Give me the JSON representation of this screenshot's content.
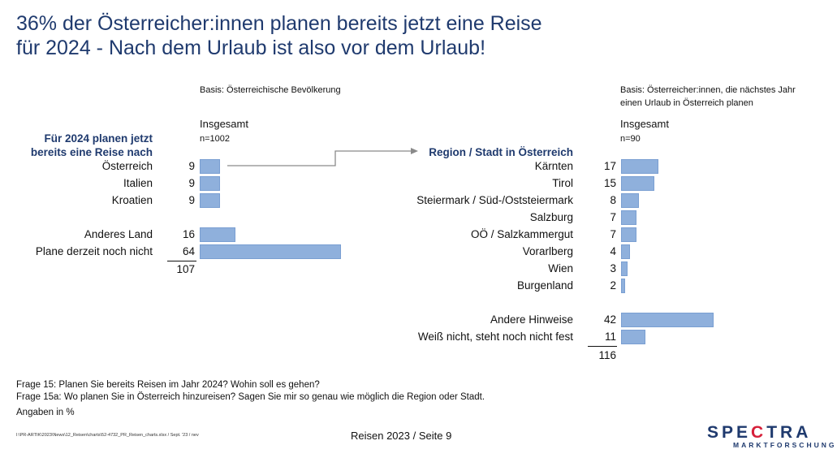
{
  "title_line1": "36% der Österreicher:innen planen bereits jetzt eine Reise",
  "title_line2": "für 2024 - Nach dem Urlaub ist also vor dem Urlaub!",
  "colors": {
    "bar": "#8fb0dc",
    "title": "#1f3a6e",
    "arrow": "#8a8a8a",
    "logo_accent": "#d6203a"
  },
  "chart_data": [
    {
      "type": "bar",
      "orientation": "horizontal",
      "basis": "Basis: Österreichische Bevölkerung",
      "group_label": "Insgesamt",
      "n": "n=1002",
      "heading": [
        "Für 2024 planen jetzt",
        "bereits eine Reise nach"
      ],
      "categories": [
        "Österreich",
        "Italien",
        "Kroatien",
        "Anderes Land",
        "Plane derzeit noch nicht"
      ],
      "values": [
        9,
        9,
        9,
        16,
        64
      ],
      "total": "107",
      "xlim": [
        0,
        64
      ]
    },
    {
      "type": "bar",
      "orientation": "horizontal",
      "basis_line1": "Basis: Österreicher:innen, die nächstes Jahr",
      "basis_line2": "einen Urlaub in Österreich planen",
      "group_label": "Insgesamt",
      "n": "n=90",
      "heading": "Region / Stadt in Österreich",
      "categories": [
        "Kärnten",
        "Tirol",
        "Steiermark / Süd-/Oststeiermark",
        "Salzburg",
        "OÖ / Salzkammergut",
        "Vorarlberg",
        "Wien",
        "Burgenland",
        "Andere Hinweise",
        "Weiß nicht, steht noch nicht fest"
      ],
      "values": [
        17,
        15,
        8,
        7,
        7,
        4,
        3,
        2,
        42,
        11
      ],
      "total": "116",
      "xlim": [
        0,
        42
      ]
    }
  ],
  "footer": {
    "q1": "Frage 15: Planen Sie bereits Reisen im Jahr 2024? Wohin soll es gehen?",
    "q2": "Frage 15a: Wo planen Sie in Österreich hinzureisen? Sagen Sie mir so genau wie möglich die Region oder Stadt.",
    "units": "Angaben in %",
    "path": "I:\\PR-ARTIK\\2023\\News\\12_Reisen\\charts\\52-4732_PR_Reisen_charts.xlsx / Sept. '23 / nev",
    "page": "Reisen 2023  /  Seite 9"
  },
  "logo": {
    "main_a": "SPE",
    "main_b": "C",
    "main_c": "TRA",
    "sub": "MARKTFORSCHUNG"
  }
}
